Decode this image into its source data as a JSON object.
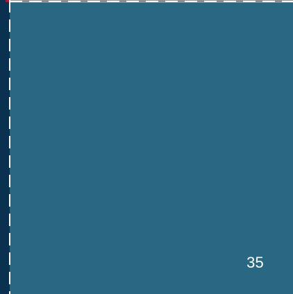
{
  "page": {
    "number": "35"
  },
  "colors": {
    "background": "#2a6782",
    "left_rail": "#0b3150",
    "dash": "#ffffff",
    "top_border": "#8b8f91",
    "corner_accent": "#9e1f3a"
  }
}
